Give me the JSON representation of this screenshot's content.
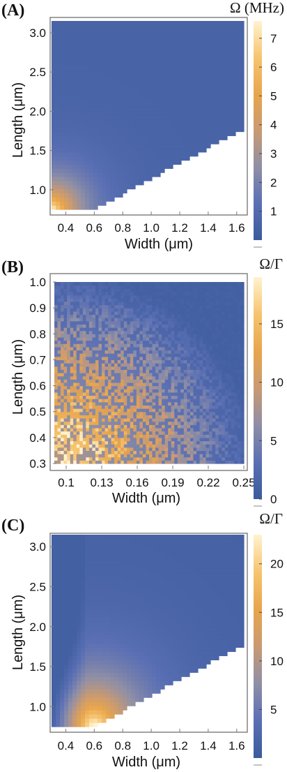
{
  "colors": {
    "scale": [
      "#3b5b9c",
      "#5a6fb4",
      "#8f8fa6",
      "#c99a72",
      "#e8a54c",
      "#f6c470",
      "#fff3cf"
    ],
    "frame": "#7a7a7a",
    "text": "#111111"
  },
  "chart_data": [
    {
      "type": "heatmap",
      "panel_label": "(A)",
      "colorbar_title": "Ω (MHz)",
      "xlabel": "Width (μm)",
      "ylabel": "Length (μm)",
      "xlim": [
        0.3,
        1.65
      ],
      "ylim": [
        0.75,
        3.15
      ],
      "xticks": [
        0.4,
        0.6,
        0.8,
        1.0,
        1.2,
        1.4,
        1.6
      ],
      "xtick_labels": [
        "0.4",
        "0.6",
        "0.8",
        "1.0",
        "1.2",
        "1.4",
        "1.6"
      ],
      "yticks": [
        1.0,
        1.5,
        2.0,
        2.5,
        3.0
      ],
      "ytick_labels": [
        "1.0",
        "1.5",
        "2.0",
        "2.5",
        "3.0"
      ],
      "colorbar_range": [
        0.0,
        7.6
      ],
      "colorbar_ticks": [
        1,
        2,
        3,
        4,
        5,
        6,
        7
      ],
      "colorbar_tick_labels": [
        "1",
        "2",
        "3",
        "4",
        "5",
        "6",
        "7"
      ],
      "data_region": "Length ≥ 0.75 + (Width − 0.6) × 0.98; empty (white) below",
      "peak": {
        "width": 0.3,
        "length": 0.75,
        "value": 7.5
      },
      "grid": false,
      "noise": false
    },
    {
      "type": "heatmap",
      "panel_label": "(B)",
      "colorbar_title": "Ω/Γ",
      "xlabel": "Width (μm)",
      "ylabel": "Length (μm)",
      "xlim": [
        0.09,
        0.25
      ],
      "ylim": [
        0.3,
        1.0
      ],
      "xticks": [
        0.1,
        0.13,
        0.16,
        0.19,
        0.22,
        0.25
      ],
      "xtick_labels": [
        "0.1",
        "0.13",
        "0.16",
        "0.19",
        "0.22",
        "0.25"
      ],
      "yticks": [
        0.3,
        0.4,
        0.5,
        0.6,
        0.7,
        0.8,
        0.9,
        1.0
      ],
      "ytick_labels": [
        "0.3",
        "0.4",
        "0.5",
        "0.6",
        "0.7",
        "0.8",
        "0.9",
        "1.0"
      ],
      "colorbar_range": [
        0,
        19
      ],
      "colorbar_ticks": [
        0,
        5,
        10,
        15
      ],
      "colorbar_tick_labels": [
        "0",
        "5",
        "10",
        "15"
      ],
      "peak": {
        "width": 0.1,
        "length": 0.3,
        "value": 19
      },
      "grid": false,
      "noise": true
    },
    {
      "type": "heatmap",
      "panel_label": "(C)",
      "colorbar_title": "Ω/Γ",
      "xlabel": "Width (μm)",
      "ylabel": "Length (μm)",
      "xlim": [
        0.3,
        1.65
      ],
      "ylim": [
        0.75,
        3.15
      ],
      "xticks": [
        0.4,
        0.6,
        0.8,
        1.0,
        1.2,
        1.4,
        1.6
      ],
      "xtick_labels": [
        "0.4",
        "0.6",
        "0.8",
        "1.0",
        "1.2",
        "1.4",
        "1.6"
      ],
      "yticks": [
        1.0,
        1.5,
        2.0,
        2.5,
        3.0
      ],
      "ytick_labels": [
        "1.0",
        "1.5",
        "2.0",
        "2.5",
        "3.0"
      ],
      "colorbar_range": [
        0,
        23
      ],
      "colorbar_ticks": [
        5,
        10,
        15,
        20
      ],
      "colorbar_tick_labels": [
        "5",
        "10",
        "15",
        "20"
      ],
      "data_region": "Length ≥ 0.75 + (Width − 0.6) × 0.98; empty (white) below",
      "peak": {
        "width": 0.6,
        "length": 0.78,
        "value": 23
      },
      "grid": false,
      "noise": false
    }
  ]
}
